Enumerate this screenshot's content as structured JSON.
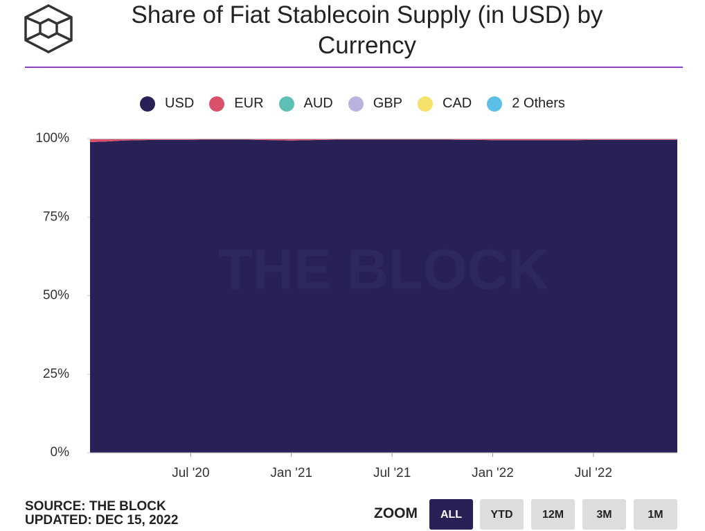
{
  "chart_data": {
    "type": "stacked-area",
    "title": "Share of Fiat Stablecoin Supply (in USD) by Currency",
    "watermark": "THE BLOCK",
    "x": [
      "2020-01",
      "2020-02",
      "2020-03",
      "2020-04",
      "2020-05",
      "2020-06",
      "2020-07",
      "2020-08",
      "2020-09",
      "2020-10",
      "2020-11",
      "2020-12",
      "2021-01",
      "2021-02",
      "2021-03",
      "2021-04",
      "2021-05",
      "2021-06",
      "2021-07",
      "2021-08",
      "2021-09",
      "2021-10",
      "2021-11",
      "2021-12",
      "2022-01",
      "2022-02",
      "2022-03",
      "2022-04",
      "2022-05",
      "2022-06",
      "2022-07",
      "2022-08",
      "2022-09",
      "2022-10",
      "2022-11",
      "2022-12"
    ],
    "xlim": [
      "2020-01",
      "2022-12"
    ],
    "xticks": [
      {
        "value": "2020-07",
        "label": "Jul '20"
      },
      {
        "value": "2021-01",
        "label": "Jan '21"
      },
      {
        "value": "2021-07",
        "label": "Jul '21"
      },
      {
        "value": "2022-01",
        "label": "Jan '22"
      },
      {
        "value": "2022-07",
        "label": "Jul '22"
      }
    ],
    "ylim": [
      0,
      100
    ],
    "yticks": [
      {
        "value": 0,
        "label": "0%"
      },
      {
        "value": 25,
        "label": "25%"
      },
      {
        "value": 50,
        "label": "50%"
      },
      {
        "value": 75,
        "label": "75%"
      },
      {
        "value": 100,
        "label": "100%"
      }
    ],
    "series": [
      {
        "name": "USD",
        "color": "#282156",
        "values": [
          98.9,
          99.1,
          99.4,
          99.5,
          99.6,
          99.6,
          99.6,
          99.7,
          99.7,
          99.7,
          99.6,
          99.5,
          99.4,
          99.5,
          99.6,
          99.7,
          99.7,
          99.7,
          99.7,
          99.7,
          99.7,
          99.7,
          99.6,
          99.6,
          99.5,
          99.5,
          99.5,
          99.5,
          99.5,
          99.5,
          99.6,
          99.6,
          99.6,
          99.6,
          99.6,
          99.6
        ]
      },
      {
        "name": "EUR",
        "color": "#d9506a",
        "values": [
          0.95,
          0.75,
          0.45,
          0.35,
          0.25,
          0.25,
          0.25,
          0.15,
          0.15,
          0.15,
          0.25,
          0.35,
          0.45,
          0.35,
          0.25,
          0.15,
          0.15,
          0.15,
          0.15,
          0.15,
          0.15,
          0.15,
          0.25,
          0.25,
          0.35,
          0.35,
          0.35,
          0.35,
          0.35,
          0.35,
          0.25,
          0.25,
          0.25,
          0.25,
          0.25,
          0.25
        ]
      },
      {
        "name": "AUD",
        "color": "#5ebfb5",
        "values": [
          0.05,
          0.05,
          0.05,
          0.05,
          0.05,
          0.05,
          0.05,
          0.05,
          0.05,
          0.05,
          0.05,
          0.05,
          0.05,
          0.05,
          0.05,
          0.05,
          0.05,
          0.05,
          0.05,
          0.05,
          0.05,
          0.05,
          0.05,
          0.05,
          0.05,
          0.05,
          0.05,
          0.05,
          0.05,
          0.05,
          0.05,
          0.05,
          0.05,
          0.05,
          0.05,
          0.05
        ]
      },
      {
        "name": "GBP",
        "color": "#b9b3e0",
        "values": [
          0.05,
          0.05,
          0.05,
          0.05,
          0.05,
          0.05,
          0.05,
          0.05,
          0.05,
          0.05,
          0.05,
          0.05,
          0.05,
          0.05,
          0.05,
          0.05,
          0.05,
          0.05,
          0.05,
          0.05,
          0.05,
          0.05,
          0.05,
          0.05,
          0.05,
          0.05,
          0.05,
          0.05,
          0.05,
          0.05,
          0.05,
          0.05,
          0.05,
          0.05,
          0.05,
          0.05
        ]
      },
      {
        "name": "CAD",
        "color": "#f5e16b",
        "values": [
          0.02,
          0.02,
          0.02,
          0.02,
          0.02,
          0.02,
          0.02,
          0.02,
          0.02,
          0.02,
          0.02,
          0.02,
          0.02,
          0.02,
          0.02,
          0.02,
          0.02,
          0.02,
          0.02,
          0.02,
          0.02,
          0.02,
          0.02,
          0.02,
          0.02,
          0.02,
          0.02,
          0.02,
          0.02,
          0.02,
          0.02,
          0.02,
          0.02,
          0.02,
          0.02,
          0.02
        ]
      },
      {
        "name": "2 Others",
        "color": "#5bbfe8",
        "values": [
          0.03,
          0.03,
          0.03,
          0.03,
          0.03,
          0.03,
          0.03,
          0.03,
          0.03,
          0.03,
          0.03,
          0.03,
          0.03,
          0.03,
          0.03,
          0.03,
          0.03,
          0.03,
          0.03,
          0.03,
          0.03,
          0.03,
          0.03,
          0.03,
          0.03,
          0.03,
          0.03,
          0.03,
          0.03,
          0.03,
          0.03,
          0.03,
          0.03,
          0.03,
          0.03,
          0.03
        ]
      }
    ]
  },
  "footer": {
    "source": "SOURCE: THE BLOCK",
    "updated": "UPDATED: DEC 15, 2022",
    "zoom_label": "ZOOM",
    "zoom_buttons": [
      "ALL",
      "YTD",
      "12M",
      "3M",
      "1M"
    ]
  }
}
